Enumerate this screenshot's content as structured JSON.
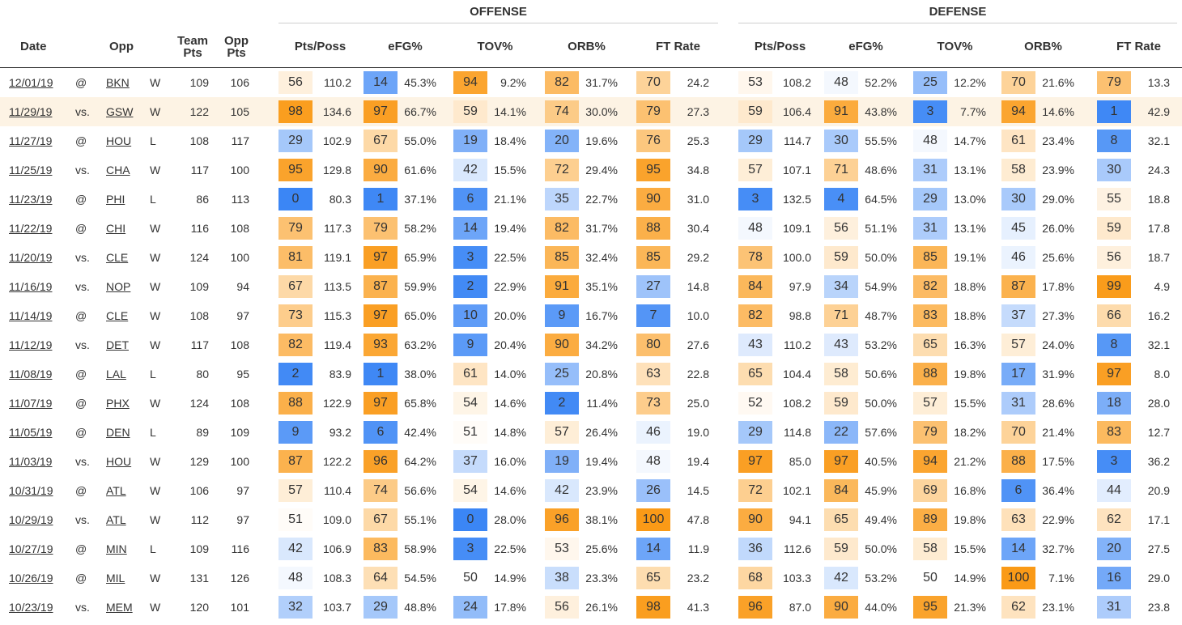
{
  "groups": {
    "offense": "OFFENSE",
    "defense": "DEFENSE"
  },
  "headers": {
    "date": "Date",
    "opp": "Opp",
    "team_pts": [
      "Team",
      "Pts"
    ],
    "opp_pts": [
      "Opp",
      "Pts"
    ],
    "offense": [
      "Pts/Poss",
      "eFG%",
      "TOV%",
      "ORB%",
      "FT Rate"
    ],
    "defense": [
      "Pts/Poss",
      "eFG%",
      "TOV%",
      "ORB%",
      "FT Rate"
    ]
  },
  "highlighted_row": 1,
  "rows": [
    {
      "date": "12/01/19",
      "loc": "@",
      "opp": "BKN",
      "res": "W",
      "tp": "109",
      "op": "106",
      "off": [
        [
          "56",
          "110.2"
        ],
        [
          "14",
          "45.3%"
        ],
        [
          "94",
          "9.2%"
        ],
        [
          "82",
          "31.7%"
        ],
        [
          "70",
          "24.2"
        ]
      ],
      "def": [
        [
          "53",
          "108.2"
        ],
        [
          "48",
          "52.2%"
        ],
        [
          "25",
          "12.2%"
        ],
        [
          "70",
          "21.6%"
        ],
        [
          "79",
          "13.3"
        ]
      ]
    },
    {
      "date": "11/29/19",
      "loc": "vs.",
      "opp": "GSW",
      "res": "W",
      "tp": "122",
      "op": "105",
      "off": [
        [
          "98",
          "134.6"
        ],
        [
          "97",
          "66.7%"
        ],
        [
          "59",
          "14.1%"
        ],
        [
          "74",
          "30.0%"
        ],
        [
          "79",
          "27.3"
        ]
      ],
      "def": [
        [
          "59",
          "106.4"
        ],
        [
          "91",
          "43.8%"
        ],
        [
          "3",
          "7.7%"
        ],
        [
          "94",
          "14.6%"
        ],
        [
          "1",
          "42.9"
        ]
      ]
    },
    {
      "date": "11/27/19",
      "loc": "@",
      "opp": "HOU",
      "res": "L",
      "tp": "108",
      "op": "117",
      "off": [
        [
          "29",
          "102.9"
        ],
        [
          "67",
          "55.0%"
        ],
        [
          "19",
          "18.4%"
        ],
        [
          "20",
          "19.6%"
        ],
        [
          "76",
          "25.3"
        ]
      ],
      "def": [
        [
          "29",
          "114.7"
        ],
        [
          "30",
          "55.5%"
        ],
        [
          "48",
          "14.7%"
        ],
        [
          "61",
          "23.4%"
        ],
        [
          "8",
          "32.1"
        ]
      ]
    },
    {
      "date": "11/25/19",
      "loc": "vs.",
      "opp": "CHA",
      "res": "W",
      "tp": "117",
      "op": "100",
      "off": [
        [
          "95",
          "129.8"
        ],
        [
          "90",
          "61.6%"
        ],
        [
          "42",
          "15.5%"
        ],
        [
          "72",
          "29.4%"
        ],
        [
          "95",
          "34.8"
        ]
      ],
      "def": [
        [
          "57",
          "107.1"
        ],
        [
          "71",
          "48.6%"
        ],
        [
          "31",
          "13.1%"
        ],
        [
          "58",
          "23.9%"
        ],
        [
          "30",
          "24.3"
        ]
      ]
    },
    {
      "date": "11/23/19",
      "loc": "@",
      "opp": "PHI",
      "res": "L",
      "tp": "86",
      "op": "113",
      "off": [
        [
          "0",
          "80.3"
        ],
        [
          "1",
          "37.1%"
        ],
        [
          "6",
          "21.1%"
        ],
        [
          "35",
          "22.7%"
        ],
        [
          "90",
          "31.0"
        ]
      ],
      "def": [
        [
          "3",
          "132.5"
        ],
        [
          "4",
          "64.5%"
        ],
        [
          "29",
          "13.0%"
        ],
        [
          "30",
          "29.0%"
        ],
        [
          "55",
          "18.8"
        ]
      ]
    },
    {
      "date": "11/22/19",
      "loc": "@",
      "opp": "CHI",
      "res": "W",
      "tp": "116",
      "op": "108",
      "off": [
        [
          "79",
          "117.3"
        ],
        [
          "79",
          "58.2%"
        ],
        [
          "14",
          "19.4%"
        ],
        [
          "82",
          "31.7%"
        ],
        [
          "88",
          "30.4"
        ]
      ],
      "def": [
        [
          "48",
          "109.1"
        ],
        [
          "56",
          "51.1%"
        ],
        [
          "31",
          "13.1%"
        ],
        [
          "45",
          "26.0%"
        ],
        [
          "59",
          "17.8"
        ]
      ]
    },
    {
      "date": "11/20/19",
      "loc": "vs.",
      "opp": "CLE",
      "res": "W",
      "tp": "124",
      "op": "100",
      "off": [
        [
          "81",
          "119.1"
        ],
        [
          "97",
          "65.9%"
        ],
        [
          "3",
          "22.5%"
        ],
        [
          "85",
          "32.4%"
        ],
        [
          "85",
          "29.2"
        ]
      ],
      "def": [
        [
          "78",
          "100.0"
        ],
        [
          "59",
          "50.0%"
        ],
        [
          "85",
          "19.1%"
        ],
        [
          "46",
          "25.6%"
        ],
        [
          "56",
          "18.7"
        ]
      ]
    },
    {
      "date": "11/16/19",
      "loc": "vs.",
      "opp": "NOP",
      "res": "W",
      "tp": "109",
      "op": "94",
      "off": [
        [
          "67",
          "113.5"
        ],
        [
          "87",
          "59.9%"
        ],
        [
          "2",
          "22.9%"
        ],
        [
          "91",
          "35.1%"
        ],
        [
          "27",
          "14.8"
        ]
      ],
      "def": [
        [
          "84",
          "97.9"
        ],
        [
          "34",
          "54.9%"
        ],
        [
          "82",
          "18.8%"
        ],
        [
          "87",
          "17.8%"
        ],
        [
          "99",
          "4.9"
        ]
      ]
    },
    {
      "date": "11/14/19",
      "loc": "@",
      "opp": "CLE",
      "res": "W",
      "tp": "108",
      "op": "97",
      "off": [
        [
          "73",
          "115.3"
        ],
        [
          "97",
          "65.0%"
        ],
        [
          "10",
          "20.0%"
        ],
        [
          "9",
          "16.7%"
        ],
        [
          "7",
          "10.0"
        ]
      ],
      "def": [
        [
          "82",
          "98.8"
        ],
        [
          "71",
          "48.7%"
        ],
        [
          "83",
          "18.8%"
        ],
        [
          "37",
          "27.3%"
        ],
        [
          "66",
          "16.2"
        ]
      ]
    },
    {
      "date": "11/12/19",
      "loc": "vs.",
      "opp": "DET",
      "res": "W",
      "tp": "117",
      "op": "108",
      "off": [
        [
          "82",
          "119.4"
        ],
        [
          "93",
          "63.2%"
        ],
        [
          "9",
          "20.4%"
        ],
        [
          "90",
          "34.2%"
        ],
        [
          "80",
          "27.6"
        ]
      ],
      "def": [
        [
          "43",
          "110.2"
        ],
        [
          "43",
          "53.2%"
        ],
        [
          "65",
          "16.3%"
        ],
        [
          "57",
          "24.0%"
        ],
        [
          "8",
          "32.1"
        ]
      ]
    },
    {
      "date": "11/08/19",
      "loc": "@",
      "opp": "LAL",
      "res": "L",
      "tp": "80",
      "op": "95",
      "off": [
        [
          "2",
          "83.9"
        ],
        [
          "1",
          "38.0%"
        ],
        [
          "61",
          "14.0%"
        ],
        [
          "25",
          "20.8%"
        ],
        [
          "63",
          "22.8"
        ]
      ],
      "def": [
        [
          "65",
          "104.4"
        ],
        [
          "58",
          "50.6%"
        ],
        [
          "88",
          "19.8%"
        ],
        [
          "17",
          "31.9%"
        ],
        [
          "97",
          "8.0"
        ]
      ]
    },
    {
      "date": "11/07/19",
      "loc": "@",
      "opp": "PHX",
      "res": "W",
      "tp": "124",
      "op": "108",
      "off": [
        [
          "88",
          "122.9"
        ],
        [
          "97",
          "65.8%"
        ],
        [
          "54",
          "14.6%"
        ],
        [
          "2",
          "11.4%"
        ],
        [
          "73",
          "25.0"
        ]
      ],
      "def": [
        [
          "52",
          "108.2"
        ],
        [
          "59",
          "50.0%"
        ],
        [
          "57",
          "15.5%"
        ],
        [
          "31",
          "28.6%"
        ],
        [
          "18",
          "28.0"
        ]
      ]
    },
    {
      "date": "11/05/19",
      "loc": "@",
      "opp": "DEN",
      "res": "L",
      "tp": "89",
      "op": "109",
      "off": [
        [
          "9",
          "93.2"
        ],
        [
          "6",
          "42.4%"
        ],
        [
          "51",
          "14.8%"
        ],
        [
          "57",
          "26.4%"
        ],
        [
          "46",
          "19.0"
        ]
      ],
      "def": [
        [
          "29",
          "114.8"
        ],
        [
          "22",
          "57.6%"
        ],
        [
          "79",
          "18.2%"
        ],
        [
          "70",
          "21.4%"
        ],
        [
          "83",
          "12.7"
        ]
      ]
    },
    {
      "date": "11/03/19",
      "loc": "vs.",
      "opp": "HOU",
      "res": "W",
      "tp": "129",
      "op": "100",
      "off": [
        [
          "87",
          "122.2"
        ],
        [
          "96",
          "64.2%"
        ],
        [
          "37",
          "16.0%"
        ],
        [
          "19",
          "19.4%"
        ],
        [
          "48",
          "19.4"
        ]
      ],
      "def": [
        [
          "97",
          "85.0"
        ],
        [
          "97",
          "40.5%"
        ],
        [
          "94",
          "21.2%"
        ],
        [
          "88",
          "17.5%"
        ],
        [
          "3",
          "36.2"
        ]
      ]
    },
    {
      "date": "10/31/19",
      "loc": "@",
      "opp": "ATL",
      "res": "W",
      "tp": "106",
      "op": "97",
      "off": [
        [
          "57",
          "110.4"
        ],
        [
          "74",
          "56.6%"
        ],
        [
          "54",
          "14.6%"
        ],
        [
          "42",
          "23.9%"
        ],
        [
          "26",
          "14.5"
        ]
      ],
      "def": [
        [
          "72",
          "102.1"
        ],
        [
          "84",
          "45.9%"
        ],
        [
          "69",
          "16.8%"
        ],
        [
          "6",
          "36.4%"
        ],
        [
          "44",
          "20.9"
        ]
      ]
    },
    {
      "date": "10/29/19",
      "loc": "vs.",
      "opp": "ATL",
      "res": "W",
      "tp": "112",
      "op": "97",
      "off": [
        [
          "51",
          "109.0"
        ],
        [
          "67",
          "55.1%"
        ],
        [
          "0",
          "28.0%"
        ],
        [
          "96",
          "38.1%"
        ],
        [
          "100",
          "47.8"
        ]
      ],
      "def": [
        [
          "90",
          "94.1"
        ],
        [
          "65",
          "49.4%"
        ],
        [
          "89",
          "19.8%"
        ],
        [
          "63",
          "22.9%"
        ],
        [
          "62",
          "17.1"
        ]
      ]
    },
    {
      "date": "10/27/19",
      "loc": "@",
      "opp": "MIN",
      "res": "L",
      "tp": "109",
      "op": "116",
      "off": [
        [
          "42",
          "106.9"
        ],
        [
          "83",
          "58.9%"
        ],
        [
          "3",
          "22.5%"
        ],
        [
          "53",
          "25.6%"
        ],
        [
          "14",
          "11.9"
        ]
      ],
      "def": [
        [
          "36",
          "112.6"
        ],
        [
          "59",
          "50.0%"
        ],
        [
          "58",
          "15.5%"
        ],
        [
          "14",
          "32.7%"
        ],
        [
          "20",
          "27.5"
        ]
      ]
    },
    {
      "date": "10/26/19",
      "loc": "@",
      "opp": "MIL",
      "res": "W",
      "tp": "131",
      "op": "126",
      "off": [
        [
          "48",
          "108.3"
        ],
        [
          "64",
          "54.5%"
        ],
        [
          "50",
          "14.9%"
        ],
        [
          "38",
          "23.3%"
        ],
        [
          "65",
          "23.2"
        ]
      ],
      "def": [
        [
          "68",
          "103.3"
        ],
        [
          "42",
          "53.2%"
        ],
        [
          "50",
          "14.9%"
        ],
        [
          "100",
          "7.1%"
        ],
        [
          "16",
          "29.0"
        ]
      ]
    },
    {
      "date": "10/23/19",
      "loc": "vs.",
      "opp": "MEM",
      "res": "W",
      "tp": "120",
      "op": "101",
      "off": [
        [
          "32",
          "103.7"
        ],
        [
          "29",
          "48.8%"
        ],
        [
          "24",
          "17.8%"
        ],
        [
          "56",
          "26.1%"
        ],
        [
          "98",
          "41.3"
        ]
      ],
      "def": [
        [
          "96",
          "87.0"
        ],
        [
          "90",
          "44.0%"
        ],
        [
          "95",
          "21.3%"
        ],
        [
          "62",
          "23.1%"
        ],
        [
          "31",
          "23.8"
        ]
      ]
    }
  ]
}
